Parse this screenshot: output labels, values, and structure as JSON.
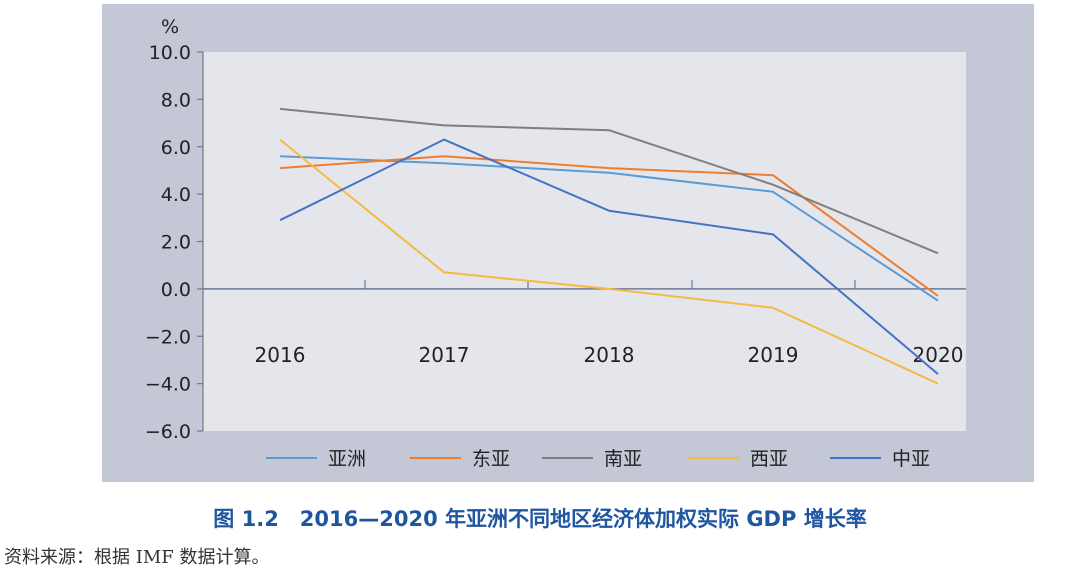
{
  "caption": "图 1.2　2016—2020 年亚洲不同地区经济体加权实际 GDP 增长率",
  "source_note": "资料来源：根据 IMF 数据计算。",
  "chart_data": {
    "type": "line",
    "title": "",
    "xlabel": "",
    "ylabel": "%",
    "x": [
      "2016",
      "2017",
      "2018",
      "2019",
      "2020"
    ],
    "ylim": [
      -6.0,
      10.0
    ],
    "yticks": [
      "10.0",
      "8.0",
      "6.0",
      "4.0",
      "2.0",
      "0.0",
      "−2.0",
      "−4.0",
      "−6.0"
    ],
    "ytick_values": [
      10,
      8,
      6,
      4,
      2,
      0,
      -2,
      -4,
      -6
    ],
    "grid": false,
    "legend_position": "bottom",
    "series": [
      {
        "name": "亚洲",
        "color": "#5b9bd5",
        "values": [
          5.6,
          5.3,
          4.9,
          4.1,
          -0.5
        ]
      },
      {
        "name": "东亚",
        "color": "#ed7d31",
        "values": [
          5.1,
          5.6,
          5.1,
          4.8,
          -0.3
        ]
      },
      {
        "name": "南亚",
        "color": "#7f7f7f",
        "values": [
          7.6,
          6.9,
          6.7,
          4.4,
          1.5
        ]
      },
      {
        "name": "西亚",
        "color": "#f4b942",
        "values": [
          6.3,
          0.7,
          0.0,
          -0.8,
          -4.0
        ]
      },
      {
        "name": "中亚",
        "color": "#4472c4",
        "values": [
          2.9,
          6.3,
          3.3,
          2.3,
          -3.6
        ]
      }
    ],
    "colors": {
      "panel_bg": "#c4c7d6",
      "plot_bg": "#e5e6ec",
      "axis": "#6d7a94"
    }
  }
}
